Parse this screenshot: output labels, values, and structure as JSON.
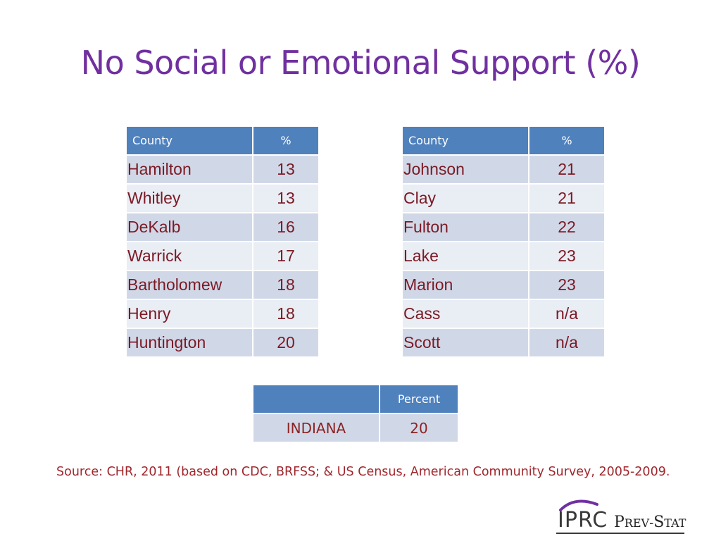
{
  "title": "No Social or Emotional Support (%)",
  "table_left": {
    "headers": [
      "County",
      "%"
    ],
    "rows": [
      {
        "county": "Hamilton",
        "pct": "13"
      },
      {
        "county": "Whitley",
        "pct": "13"
      },
      {
        "county": "DeKalb",
        "pct": "16"
      },
      {
        "county": "Warrick",
        "pct": "17"
      },
      {
        "county": "Bartholomew",
        "pct": "18"
      },
      {
        "county": "Henry",
        "pct": "18"
      },
      {
        "county": "Huntington",
        "pct": "20"
      }
    ]
  },
  "table_right": {
    "headers": [
      "County",
      "%"
    ],
    "rows": [
      {
        "county": "Johnson",
        "pct": "21"
      },
      {
        "county": "Clay",
        "pct": "21"
      },
      {
        "county": "Fulton",
        "pct": "22"
      },
      {
        "county": "Lake",
        "pct": "23"
      },
      {
        "county": "Marion",
        "pct": "23"
      },
      {
        "county": "Cass",
        "pct": "n/a"
      },
      {
        "county": "Scott",
        "pct": "n/a"
      }
    ]
  },
  "table_state": {
    "headers": [
      "",
      "Percent"
    ],
    "row": {
      "label": "INDIANA",
      "value": "20"
    }
  },
  "source": "Source:  CHR, 2011 (based on CDC, BRFSS; & US Census, American Community Survey, 2005-2009.",
  "logo": {
    "org": "IPRC",
    "product_initial_1": "P",
    "product_rest_1": "REV",
    "product_sep": "-",
    "product_initial_2": "S",
    "product_rest_2": "TAT"
  },
  "colors": {
    "title": "#7030a0",
    "header_bg": "#4f81bd",
    "row_odd": "#d0d8e8",
    "row_even": "#e9edf4",
    "cell_text": "#7b1a24",
    "source_text": "#a0262c",
    "logo_arc": "#7030a0"
  }
}
